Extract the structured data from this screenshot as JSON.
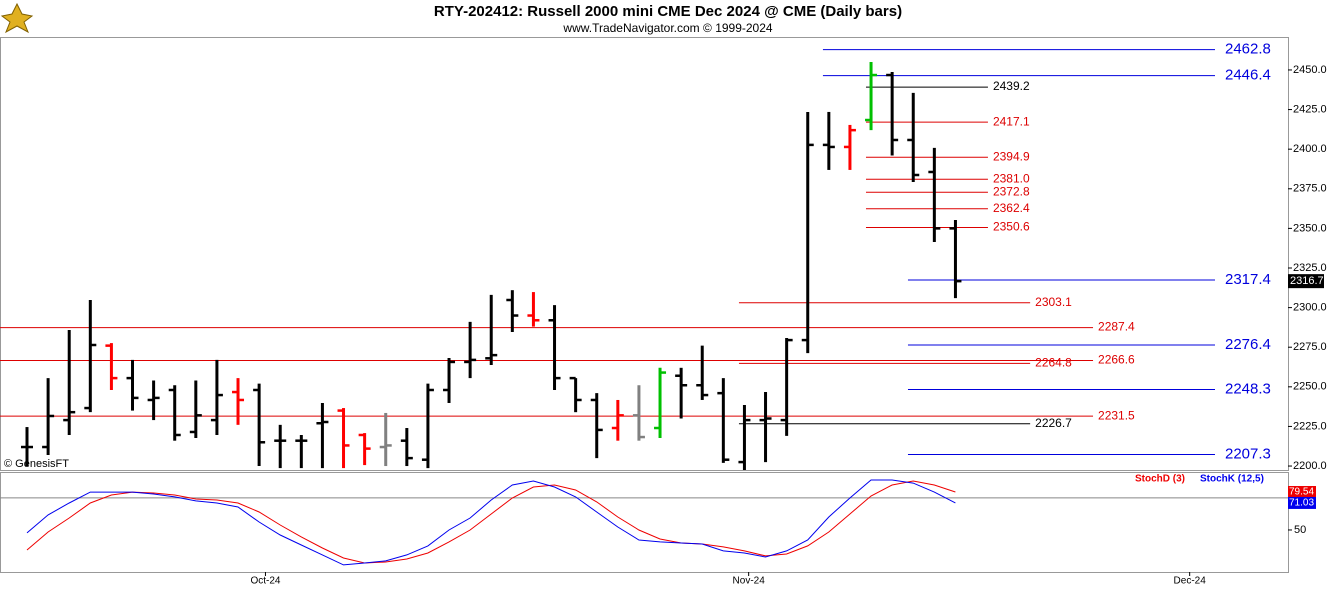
{
  "chart_data": [
    {
      "type": "ohlc",
      "title": "RTY-202412:  Russell 2000 mini CME Dec 2024 @ CME  (Daily bars)",
      "subtitle": "www.TradeNavigator.com © 1999-2024",
      "copyright": "© GenesisFT",
      "x": [
        0,
        1,
        2,
        3,
        4,
        5,
        6,
        7,
        8,
        9,
        10,
        11,
        12,
        13,
        14,
        15,
        16,
        17,
        18,
        19,
        20,
        21,
        22,
        23,
        24,
        25,
        26,
        27,
        28,
        29,
        30,
        31,
        32,
        33,
        34,
        35,
        36,
        37,
        38,
        39,
        40,
        41,
        42,
        43,
        44
      ],
      "xlim": [
        -1.28,
        59.76
      ],
      "open": [
        2212,
        2212,
        2229,
        2236.6,
        2276,
        2255.5,
        2241.7,
        2248,
        2221.5,
        2229,
        2246.7,
        2248,
        2216,
        2216,
        2227,
        2235,
        2219.6,
        2212,
        2216,
        2204,
        2248,
        2265.7,
        2268,
        2304.8,
        2295,
        2292,
        2255.5,
        2241.7,
        2224,
        2232,
        2224,
        2257,
        2251,
        2246,
        2202.5,
        2229,
        2229,
        2279.5,
        2402.7,
        2401.4,
        2418.4,
        2446.8,
        2405.8,
        2385.6,
        2350
      ],
      "high": [
        2224.6,
        2255.5,
        2285.9,
        2304.8,
        2277.6,
        2267,
        2254,
        2251,
        2254,
        2267,
        2255.5,
        2252,
        2226,
        2219.6,
        2239.8,
        2236.6,
        2220.8,
        2233.5,
        2224,
        2252,
        2268.2,
        2291,
        2308,
        2311,
        2309.8,
        2301.6,
        2255.5,
        2246,
        2241.7,
        2251,
        2262,
        2262,
        2276,
        2255.5,
        2238.5,
        2246.7,
        2280.8,
        2423.5,
        2423.5,
        2415.3,
        2455,
        2448.7,
        2435.5,
        2400.8,
        2355.3
      ],
      "low": [
        2200,
        2207,
        2219.6,
        2234,
        2248,
        2235,
        2229,
        2216,
        2217.7,
        2219.6,
        2226,
        2200,
        2198.7,
        2198.7,
        2198.7,
        2198.7,
        2200.6,
        2200,
        2200,
        2198.7,
        2239.8,
        2255.5,
        2263.8,
        2284.6,
        2288,
        2248,
        2234,
        2205,
        2216,
        2216,
        2217.7,
        2230,
        2241.7,
        2202,
        2197.5,
        2202.5,
        2219,
        2271.3,
        2386.9,
        2386.9,
        2412,
        2396,
        2379.3,
        2341.4,
        2306
      ],
      "close": [
        2212,
        2231.6,
        2234,
        2276.4,
        2255.5,
        2243,
        2243,
        2219.6,
        2232,
        2244.8,
        2241.7,
        2215,
        2216,
        2216,
        2227.8,
        2213,
        2211,
        2213,
        2205,
        2248,
        2265.7,
        2267,
        2270,
        2295,
        2292,
        2255.5,
        2241.7,
        2222.8,
        2232,
        2218.3,
        2259,
        2251,
        2244.8,
        2204,
        2229,
        2230,
        2279.5,
        2402.7,
        2401.4,
        2412,
        2446.8,
        2405.8,
        2383.7,
        2350,
        2316.7
      ],
      "bar_colors": [
        "#000000",
        "#000000",
        "#000000",
        "#000000",
        "#ff0000",
        "#000000",
        "#000000",
        "#000000",
        "#000000",
        "#000000",
        "#ff0000",
        "#000000",
        "#000000",
        "#000000",
        "#000000",
        "#ff0000",
        "#ff0000",
        "#808080",
        "#000000",
        "#000000",
        "#000000",
        "#000000",
        "#000000",
        "#000000",
        "#ff0000",
        "#000000",
        "#000000",
        "#000000",
        "#ff0000",
        "#808080",
        "#00c000",
        "#000000",
        "#000000",
        "#000000",
        "#000000",
        "#000000",
        "#000000",
        "#000000",
        "#000000",
        "#ff0000",
        "#00c000",
        "#000000",
        "#000000",
        "#000000",
        "#000000"
      ],
      "last_price": 2316.7,
      "ylim": [
        2197.5,
        2470.8
      ],
      "yticks": [
        {
          "value": 2200,
          "label": "2200.0"
        },
        {
          "value": 2225,
          "label": "2225.0"
        },
        {
          "value": 2250,
          "label": "2250.0"
        },
        {
          "value": 2275,
          "label": "2275.0"
        },
        {
          "value": 2300,
          "label": "2300.0"
        },
        {
          "value": 2325,
          "label": "2325.0"
        },
        {
          "value": 2350,
          "label": "2350.0"
        },
        {
          "value": 2375,
          "label": "2375.0"
        },
        {
          "value": 2400,
          "label": "2400.0"
        },
        {
          "value": 2425,
          "label": "2425.0"
        },
        {
          "value": 2450,
          "label": "2450.0"
        }
      ],
      "levels": [
        {
          "value": 2462.8,
          "label": "2462.8",
          "color": "#0000dd",
          "from": 37.72,
          "to": 56.3
        },
        {
          "value": 2446.4,
          "label": "2446.4",
          "color": "#0000dd",
          "from": 37.72,
          "to": 56.3
        },
        {
          "value": 2439.2,
          "label": "2439.2",
          "color": "#000000",
          "from": 39.76,
          "to": 45.54
        },
        {
          "value": 2417.1,
          "label": "2417.1",
          "color": "#dd0000",
          "from": 39.76,
          "to": 45.54
        },
        {
          "value": 2394.9,
          "label": "2394.9",
          "color": "#dd0000",
          "from": 39.76,
          "to": 45.54
        },
        {
          "value": 2381.0,
          "label": "2381.0",
          "color": "#dd0000",
          "from": 39.76,
          "to": 45.54
        },
        {
          "value": 2372.8,
          "label": "2372.8",
          "color": "#dd0000",
          "from": 39.76,
          "to": 45.54
        },
        {
          "value": 2362.4,
          "label": "2362.4",
          "color": "#dd0000",
          "from": 39.76,
          "to": 45.54
        },
        {
          "value": 2350.6,
          "label": "2350.6",
          "color": "#dd0000",
          "from": 39.76,
          "to": 45.54
        },
        {
          "value": 2317.4,
          "label": "2317.4",
          "color": "#0000dd",
          "from": 41.75,
          "to": 56.3
        },
        {
          "value": 2303.1,
          "label": "2303.1",
          "color": "#dd0000",
          "from": 33.74,
          "to": 47.54
        },
        {
          "value": 2287.4,
          "label": "2287.4",
          "color": "#dd0000",
          "from": -1.28,
          "to": 50.52
        },
        {
          "value": 2276.4,
          "label": "2276.4",
          "color": "#0000dd",
          "from": 41.75,
          "to": 56.3
        },
        {
          "value": 2266.6,
          "label": "2266.6",
          "color": "#dd0000",
          "from": -1.28,
          "to": 50.52
        },
        {
          "value": 2264.8,
          "label": "2264.8",
          "color": "#dd0000",
          "from": 33.74,
          "to": 47.54
        },
        {
          "value": 2248.3,
          "label": "2248.3",
          "color": "#0000dd",
          "from": 41.75,
          "to": 56.3
        },
        {
          "value": 2231.5,
          "label": "2231.5",
          "color": "#dd0000",
          "from": -1.28,
          "to": 50.52
        },
        {
          "value": 2226.7,
          "label": "2226.7",
          "color": "#000000",
          "from": 33.74,
          "to": 47.54
        },
        {
          "value": 2207.3,
          "label": "2207.3",
          "color": "#0000dd",
          "from": 41.75,
          "to": 56.3
        }
      ]
    },
    {
      "type": "line",
      "x": [
        0,
        1,
        2,
        3,
        4,
        5,
        6,
        7,
        8,
        9,
        10,
        11,
        12,
        13,
        14,
        15,
        16,
        17,
        18,
        19,
        20,
        21,
        22,
        23,
        24,
        25,
        26,
        27,
        28,
        29,
        30,
        31,
        32,
        33,
        34,
        35,
        36,
        37,
        38,
        39,
        40,
        41,
        42,
        43,
        44
      ],
      "xlim": [
        -1.28,
        59.76
      ],
      "xticks": [
        {
          "value": 11.3,
          "label": "Oct-24"
        },
        {
          "value": 34.2,
          "label": "Nov-24"
        },
        {
          "value": 55.1,
          "label": "Dec-24"
        }
      ],
      "ylim": [
        17.3,
        95.1
      ],
      "yticks": [
        50
      ],
      "reference_lines": [
        75
      ],
      "series": [
        {
          "name": "StochD (3)",
          "color": "#ee0000",
          "values": [
            34.4,
            48.4,
            59.3,
            71.0,
            77.2,
            79.5,
            78.8,
            77.2,
            74.1,
            73.3,
            71.0,
            64.0,
            53.9,
            44.6,
            36.0,
            28.2,
            24.3,
            25.1,
            27.4,
            32.1,
            40.7,
            50.0,
            62.4,
            74.9,
            83.4,
            85.0,
            81.1,
            71.8,
            60.1,
            50.0,
            43.0,
            39.9,
            39.1,
            36.8,
            33.7,
            29.8,
            31.3,
            37.6,
            48.4,
            62.4,
            76.4,
            85.0,
            88.1,
            85.0,
            79.54
          ]
        },
        {
          "name": "StochK (12,5)",
          "color": "#0000ee",
          "values": [
            47.7,
            61.7,
            71.0,
            79.5,
            79.5,
            79.5,
            78.0,
            75.7,
            72.6,
            71.0,
            67.9,
            56.2,
            46.1,
            38.3,
            30.6,
            22.8,
            24.3,
            25.9,
            30.6,
            37.6,
            50.0,
            59.3,
            73.3,
            85.0,
            88.1,
            83.4,
            75.7,
            64.0,
            52.3,
            42.2,
            40.7,
            39.9,
            39.1,
            33.7,
            32.1,
            29.0,
            33.7,
            42.2,
            60.1,
            74.9,
            88.9,
            88.9,
            86.5,
            79.5,
            71.03
          ]
        }
      ]
    }
  ]
}
